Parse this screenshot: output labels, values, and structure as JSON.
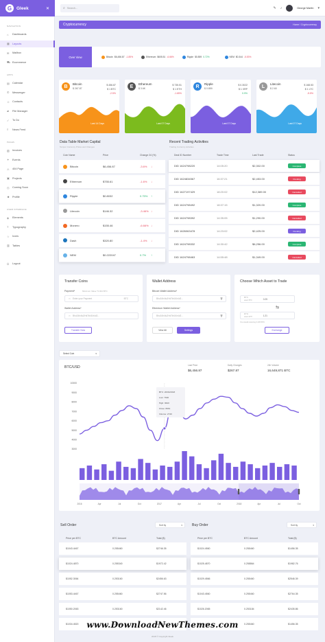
{
  "brand": {
    "name": "Gleek",
    "logo_letter": "G"
  },
  "header": {
    "search_placeholder": "Search...",
    "user_name": "George Martin"
  },
  "sidebar": {
    "sections": [
      {
        "label": "Navigation",
        "items": [
          {
            "label": "Dashboards",
            "icon": "home-icon"
          },
          {
            "label": "Layouts",
            "icon": "layout-icon",
            "active": true
          },
          {
            "label": "Mailbox",
            "icon": "mail-icon"
          },
          {
            "label": "Ecommerce",
            "icon": "cart-icon"
          }
        ]
      },
      {
        "label": "Apps",
        "items": [
          {
            "label": "Calendar",
            "icon": "calendar-icon"
          },
          {
            "label": "Messenger",
            "icon": "chat-icon"
          },
          {
            "label": "Contacts",
            "icon": "user-icon"
          },
          {
            "label": "File Manager",
            "icon": "folder-icon"
          },
          {
            "label": "To Do",
            "icon": "check-icon"
          },
          {
            "label": "News Feed",
            "icon": "news-icon"
          }
        ]
      },
      {
        "label": "Pages",
        "items": [
          {
            "label": "Invoices",
            "icon": "invoice-icon"
          },
          {
            "label": "Events",
            "icon": "event-icon"
          },
          {
            "label": "404 Page",
            "icon": "warning-icon"
          },
          {
            "label": "Projects",
            "icon": "project-icon"
          },
          {
            "label": "Coming Soon",
            "icon": "clock-icon"
          },
          {
            "label": "Profile",
            "icon": "profile-icon"
          }
        ]
      },
      {
        "label": "User Interface",
        "items": [
          {
            "label": "Elements",
            "icon": "element-icon"
          },
          {
            "label": "Typography",
            "icon": "type-icon"
          },
          {
            "label": "Icons",
            "icon": "star-icon"
          },
          {
            "label": "Tables",
            "icon": "table-icon"
          }
        ]
      },
      {
        "label": "",
        "items": [
          {
            "label": "Logout",
            "icon": "logout-icon"
          }
        ]
      }
    ]
  },
  "page": {
    "title": "Cryptocurrency",
    "breadcrumb": "Home  /  Cryptocurrency"
  },
  "ticker": {
    "overview_label": "Over View",
    "items": [
      {
        "name": "Bitcoin",
        "price": "$6,456.87",
        "change": "-1.85%",
        "dir": "dn",
        "color": "#f7931a"
      },
      {
        "name": "Ethereum",
        "price": "$605.51",
        "change": "-6.66%",
        "dir": "dn",
        "color": "#555555"
      },
      {
        "name": "Ripple",
        "price": "$0.859",
        "change": "0.72%",
        "dir": "up",
        "color": "#2e86de"
      },
      {
        "name": "NEM",
        "price": "$0.344",
        "change": "-5.53%",
        "dir": "dn",
        "color": "#2e86de"
      }
    ]
  },
  "coin_cards": [
    {
      "name": "Bitcoin",
      "symbol": "B",
      "price": "$ 267.87",
      "value": "$ 456.87",
      "sub": "$ 1 BTC",
      "change": "-2.5%",
      "dir": "dn",
      "label": "Last 14 Days",
      "color": "#f7931a",
      "icon_color": "#f7931a"
    },
    {
      "name": "Ethereum",
      "symbol": "E",
      "price": "$ 3.6K",
      "value": "$ 735.51",
      "sub": "$ 1 ETH",
      "change": "-1.65%",
      "dir": "dn",
      "label": "Last 07 Days",
      "color": "#7cbb1e",
      "icon_color": "#555555"
    },
    {
      "name": "Ripple",
      "symbol": "R",
      "price": "$ 0.859",
      "value": "$ 0.3022",
      "sub": "$ 1 XRP",
      "change": "0.9%",
      "dir": "up",
      "label": "Last 07 Days",
      "color": "#7b5fe0",
      "icon_color": "#2e86de"
    },
    {
      "name": "Litecoin",
      "symbol": "L",
      "price": "$ 2.60",
      "value": "$ 168.53",
      "sub": "$ 1 LTC",
      "change": "-5.5%",
      "dir": "dn",
      "label": "Last 07 Days",
      "color": "#3fa9e8",
      "icon_color": "#999999"
    }
  ],
  "market_table": {
    "title": "Data Table Market Capital",
    "subtitle": "Tempor Currency Prices and Changes",
    "headers": [
      "Coin Name",
      "Price",
      "Change 24 (%)"
    ],
    "rows": [
      {
        "coin": "Bitcoin",
        "price": "$6,456.87",
        "change": "-3.6%",
        "dir": "dn",
        "color": "#f7931a"
      },
      {
        "coin": "Ethereum",
        "price": "$755.61",
        "change": "-1.6%",
        "dir": "dn",
        "color": "#444444"
      },
      {
        "coin": "Ripple",
        "price": "$0.8032",
        "change": "0.75%",
        "dir": "up",
        "color": "#2e86de"
      },
      {
        "coin": "Litecoin",
        "price": "$146.32",
        "change": "-3.46%",
        "dir": "dn",
        "color": "#999999"
      },
      {
        "coin": "Monero",
        "price": "$155.46",
        "change": "-6.66%",
        "dir": "dn",
        "color": "#f26822"
      },
      {
        "coin": "Dash",
        "price": "$320.80",
        "change": "-1.4%",
        "dir": "dn",
        "color": "#1c75bc"
      },
      {
        "coin": "NEM",
        "price": "$0.222047",
        "change": "0.7%",
        "dir": "up",
        "color": "#67b2e8"
      }
    ]
  },
  "trading": {
    "title": "Recent Trading Activities",
    "subtitle": "Trading Currency Activities",
    "headers": [
      "Deal ID Number",
      "Trade Time",
      "Last Trade",
      "Status"
    ],
    "rows": [
      {
        "id": "DID 1624798220",
        "time": "14:05:20",
        "trade": "$2,302.00",
        "status": "Complete",
        "color": "#2bb673"
      },
      {
        "id": "DID 1624834567",
        "time": "16:37:21",
        "trade": "$2,453.00",
        "status": "Pending",
        "color": "#e84a5f"
      },
      {
        "id": "DID 1627197429",
        "time": "18:20:02",
        "trade": "$12,389.00",
        "status": "Cancelled",
        "color": "#e84a5f"
      },
      {
        "id": "DID 1624798492",
        "time": "18:37:15",
        "trade": "$1,320.00",
        "status": "Complete",
        "color": "#2bb673"
      },
      {
        "id": "DID 1624798392",
        "time": "14:35:05",
        "trade": "$1,290.00",
        "status": "Cancelled",
        "color": "#e84a5f"
      },
      {
        "id": "DID 1626063478",
        "time": "14:23:02",
        "trade": "$2,425.00",
        "status": "Pending",
        "color": "#7b5fe0"
      },
      {
        "id": "DID 1624798332",
        "time": "14:30:42",
        "trade": "$6,256.00",
        "status": "Complete",
        "color": "#2bb673"
      },
      {
        "id": "DID 1624798463",
        "time": "14:55:48",
        "trade": "$1,349.00",
        "status": "Cancelled",
        "color": "#e84a5f"
      }
    ]
  },
  "transfer": {
    "title": "Transfer Coins",
    "payment_label": "Payment*",
    "payment_hint": "Minimum Value *0.004 BTC",
    "payment_placeholder": "Enter your Payment",
    "payment_unit": "BTC",
    "wallet_label": "Wallet Address*",
    "wallet_value": "Bhu34h4tu2Hd7kh34r4d2...",
    "button": "Transfer Now"
  },
  "wallet": {
    "title": "Wallet Address",
    "btc_label": "Bitcoin Wallet Address*",
    "btc_value": "Bhu34h4tu2Hd7kh34r4d2...",
    "eth_label": "Ethereum Wallet Address*",
    "eth_value": "Bhu34h4tu2Hd7kh34r4d2...",
    "view_all": "View All",
    "settings": "Settings"
  },
  "exchange": {
    "title": "Choose Which Asset to Trade",
    "from_unit": "BTC",
    "from_sub": "select BTC",
    "from_value": "0.25",
    "to_unit": "ETH",
    "to_sub": "select ETH",
    "to_value": "1.21",
    "note": "You would receiving 0.235 BTC",
    "button": "Exchange"
  },
  "select_coin": "Select Coin",
  "price_chart": {
    "title": "BTC/USD",
    "stats": [
      {
        "label": "Last Price",
        "value": "$6,456.87"
      },
      {
        "label": "Daily Changes",
        "value": "$267.87"
      },
      {
        "label": "24h Volume",
        "value": "16,649,871 BTC"
      }
    ],
    "tooltip": [
      "BTC: 20/04/2018",
      "Low: 7640",
      "High: 9620",
      "Close: 8661",
      "Volume: 2740"
    ]
  },
  "chart_data": {
    "type": "line",
    "yticks": [
      10000,
      9000,
      8000,
      7000,
      6000,
      5000,
      4000,
      3000
    ],
    "ylim": [
      3000,
      10000
    ],
    "xticks": [
      "2016",
      "Apr",
      "Jul",
      "Oct",
      "2017",
      "Apr",
      "Jul",
      "Oct",
      "2018",
      "Apr",
      "Jul",
      "Oct"
    ],
    "line": [
      4600,
      5000,
      5400,
      5800,
      6000,
      6600,
      7100,
      7600,
      7300,
      6400,
      5000,
      3900,
      5200,
      7400,
      7000,
      6200,
      6600,
      7300,
      7900,
      8300,
      8600,
      8500,
      7900,
      7300,
      6800,
      6500,
      6800,
      7400,
      7700,
      7500,
      7100,
      6900
    ],
    "volume_label": "Volume",
    "volume": [
      9,
      11,
      8,
      12,
      7,
      14,
      10,
      9,
      16,
      13,
      8,
      11,
      10,
      14,
      22,
      18,
      12,
      9,
      15,
      20,
      13,
      10,
      14,
      12,
      9,
      11,
      13,
      10,
      12,
      11
    ]
  },
  "sell_order": {
    "title": "Sell Order",
    "sort": "Sort by",
    "headers": [
      "Price per BTC",
      "BTC Amount",
      "Total ($)"
    ],
    "rows": [
      [
        "$1043.4467",
        "0.255460",
        "$2746.35"
      ],
      [
        "$1024.4870",
        "0.255340",
        "$1972.42"
      ],
      [
        "$1052.3064",
        "0.253160",
        "$2456.63"
      ],
      [
        "$1053.4467",
        "0.255460",
        "$2747.56"
      ],
      [
        "$1050.2063",
        "0.253160",
        "$2142.46"
      ],
      [
        "$1034.4520",
        "0.255460",
        "$2432.50"
      ]
    ]
  },
  "buy_order": {
    "title": "Buy Order",
    "sort": "Sort by",
    "headers": [
      "Price per BTC",
      "BTC Amount",
      "Total ($)"
    ],
    "rows": [
      [
        "$1024.4560",
        "0.255460",
        "$1456.35"
      ],
      [
        "$1025.4870",
        "0.258864",
        "$1982.76"
      ],
      [
        "$1029.4566",
        "0.255460",
        "$2546.39"
      ],
      [
        "$1043.4560",
        "0.255460",
        "$2764.35"
      ],
      [
        "$1026.2065",
        "0.253184",
        "$2435.86"
      ],
      [
        "$1034.4560",
        "0.255460",
        "$1456.35"
      ]
    ]
  },
  "footer": {
    "watermark": "www.DownloadNewThemes.com",
    "copyright": "2018 © Copyright Gleek"
  }
}
